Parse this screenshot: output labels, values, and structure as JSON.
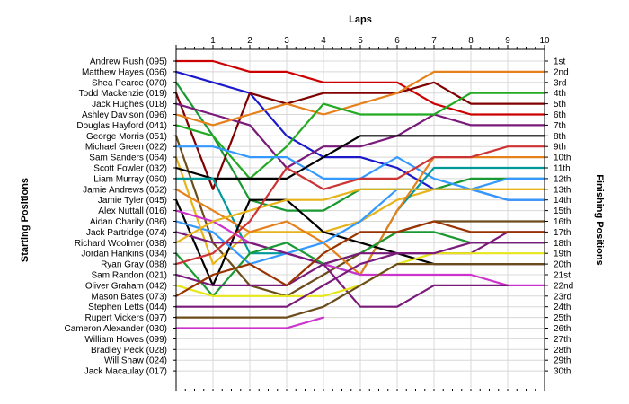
{
  "chart_data": {
    "type": "line",
    "title": "Laps",
    "ylabel_left": "Starting Positions",
    "ylabel_right": "Finishing Positions",
    "grid": true,
    "x": [
      "0",
      "1",
      "2",
      "3",
      "4",
      "5",
      "6",
      "7",
      "8",
      "9",
      "10"
    ],
    "xticks": [
      "1",
      "2",
      "3",
      "4",
      "5",
      "6",
      "7",
      "8",
      "9",
      "10"
    ],
    "starting_positions": [
      "Andrew Rush (095)",
      "Matthew Hayes (066)",
      "Shea Pearce (070)",
      "Todd Mackenzie (019)",
      "Jack Hughes (018)",
      "Ashley Davison (096)",
      "Douglas Hayford (041)",
      "George Morris (051)",
      "Michael Green (022)",
      "Sam Sanders (064)",
      "Scott Fowler (032)",
      "Liam Murray (060)",
      "Jamie Andrews (052)",
      "Jamie Tyler (045)",
      "Alex Nuttall (016)",
      "Aidan Charity (086)",
      "Jack Partridge (074)",
      "Richard Woolmer (038)",
      "Jordan Hankins (034)",
      "Ryan Gray (088)",
      "Sam Randon (021)",
      "Oliver Graham (042)",
      "Mason Bates (073)",
      "Stephen Letts (044)",
      "Rupert Vickers (097)",
      "Cameron Alexander (030)",
      "William Howes (099)",
      "Bradley Peck (028)",
      "Will Shaw (024)",
      "Jack Macaulay (017)"
    ],
    "finishing_positions": [
      "1st",
      "2nd",
      "3rd",
      "4th",
      "5th",
      "6th",
      "7th",
      "8th",
      "9th",
      "10th",
      "11th",
      "12th",
      "13th",
      "14th",
      "15th",
      "16th",
      "17th",
      "18th",
      "19th",
      "20th",
      "21st",
      "22nd",
      "23rd",
      "24th",
      "25th",
      "26th",
      "27th",
      "28th",
      "29th",
      "30th"
    ],
    "ylim": [
      1,
      30
    ],
    "series": [
      {
        "color": "#cc0000",
        "values": [
          1,
          1,
          2,
          2,
          3,
          3,
          3,
          5,
          6,
          6,
          6
        ]
      },
      {
        "color": "#1a1acc",
        "values": [
          2,
          3,
          4,
          8,
          10,
          10,
          11,
          13,
          13,
          14,
          14
        ]
      },
      {
        "color": "#1a9933",
        "values": [
          3,
          8,
          14,
          15,
          15,
          13,
          13,
          13,
          12,
          12,
          12
        ]
      },
      {
        "color": "#800000",
        "values": [
          4,
          13,
          4,
          5,
          4,
          4,
          4,
          3,
          5,
          5,
          5
        ]
      },
      {
        "color": "#7a1a7a",
        "values": [
          5,
          6,
          7,
          11,
          9,
          9,
          8,
          6,
          7,
          7,
          7
        ]
      },
      {
        "color": "#e6801a",
        "values": [
          6,
          7,
          6,
          5,
          6,
          5,
          4,
          2,
          2,
          2,
          2
        ]
      },
      {
        "color": "#22aa22",
        "values": [
          7,
          8,
          12,
          9,
          5,
          6,
          6,
          6,
          4,
          4,
          4
        ]
      },
      {
        "color": "#6b4c1a",
        "values": [
          8,
          18,
          22,
          23,
          21,
          19,
          17,
          16,
          16,
          16,
          16
        ]
      },
      {
        "color": "#3399ff",
        "values": [
          9,
          9,
          10,
          10,
          12,
          12,
          10,
          12,
          13,
          12,
          12
        ]
      },
      {
        "color": "#e6b31a",
        "values": [
          10,
          20,
          17,
          17,
          17,
          16,
          14,
          13,
          13,
          13,
          13
        ]
      },
      {
        "color": "#000000",
        "values": [
          11,
          12,
          12,
          12,
          10,
          8,
          8,
          8,
          8,
          8,
          8
        ]
      },
      {
        "color": "#009999",
        "values": [
          12,
          12,
          19,
          19,
          20,
          21,
          15,
          11,
          11,
          11,
          11
        ]
      },
      {
        "color": "#e6801a",
        "values": [
          13,
          15,
          17,
          16,
          18,
          21,
          15,
          10,
          10,
          10,
          10
        ]
      },
      {
        "color": "#000000",
        "values": [
          14,
          22,
          14,
          14,
          17,
          18,
          19,
          20,
          20,
          20,
          20
        ]
      },
      {
        "color": "#cc33cc",
        "values": [
          15,
          16,
          18,
          19,
          20,
          21,
          21,
          21,
          21,
          22,
          22
        ]
      },
      {
        "color": "#3399ff",
        "values": [
          16,
          17,
          20,
          19,
          18,
          16,
          13,
          13,
          13,
          14,
          14
        ]
      },
      {
        "color": "#7a1a7a",
        "values": [
          17,
          18,
          18,
          19,
          20,
          24,
          24,
          22,
          22,
          22,
          null
        ]
      },
      {
        "color": "#e6b31a",
        "values": [
          18,
          16,
          15,
          14,
          14,
          13,
          13,
          13,
          13,
          13,
          13
        ]
      },
      {
        "color": "#1a9933",
        "values": [
          19,
          23,
          19,
          18,
          20,
          19,
          17,
          17,
          18,
          18,
          18
        ]
      },
      {
        "color": "#cc3333",
        "values": [
          20,
          19,
          16,
          11,
          13,
          12,
          12,
          10,
          10,
          9,
          9
        ]
      },
      {
        "color": "#7a1a7a",
        "values": [
          21,
          22,
          22,
          22,
          20,
          19,
          19,
          19,
          19,
          17,
          17
        ]
      },
      {
        "color": "#e6e61a",
        "values": [
          22,
          23,
          23,
          23,
          23,
          22,
          20,
          19,
          19,
          19,
          19
        ]
      },
      {
        "color": "#993300",
        "values": [
          23,
          21,
          20,
          22,
          19,
          17,
          17,
          16,
          17,
          17,
          17
        ]
      },
      {
        "color": "#7a1a7a",
        "values": [
          24,
          24,
          24,
          24,
          22,
          20,
          19,
          19,
          18,
          18,
          18
        ]
      },
      {
        "color": "#6b4c1a",
        "values": [
          25,
          25,
          25,
          25,
          24,
          22,
          20,
          20,
          20,
          20,
          20
        ]
      },
      {
        "color": "#cc33cc",
        "values": [
          26,
          26,
          26,
          26,
          25,
          null,
          null,
          null,
          null,
          null,
          null
        ]
      }
    ]
  }
}
